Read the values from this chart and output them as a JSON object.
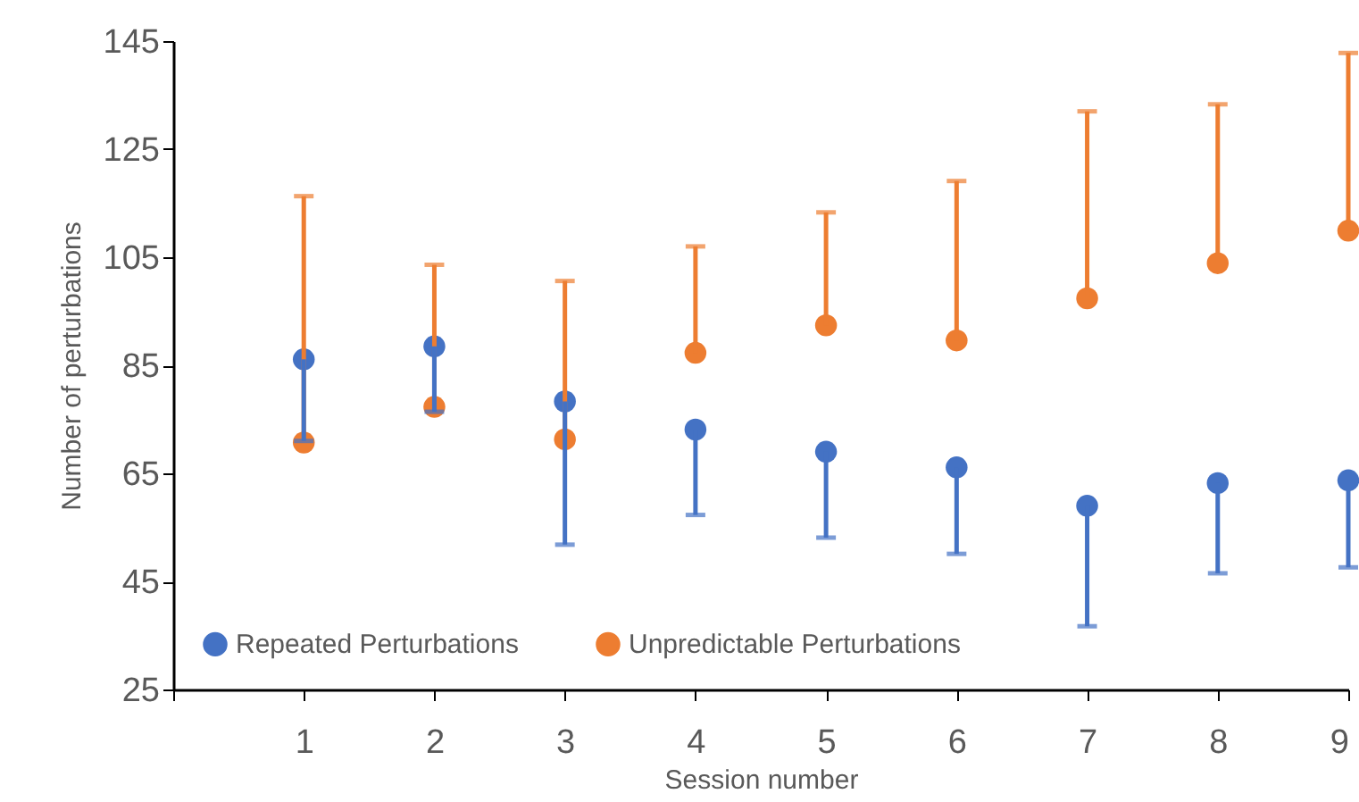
{
  "chart_data": {
    "type": "scatter",
    "xlabel": "Session number",
    "ylabel": "Number of perturbations",
    "x": [
      1,
      2,
      3,
      4,
      5,
      6,
      7,
      8,
      9
    ],
    "series": [
      {
        "name": "Repeated Perturbations",
        "color": "#4472c4",
        "values": [
          86.1,
          88.5,
          78.3,
          73.1,
          69.0,
          66.1,
          59.0,
          63.2,
          63.7
        ],
        "errors": [
          [
            71,
            86.1
          ],
          [
            76.4,
            88.5
          ],
          [
            51.8,
            78.3
          ],
          [
            57.3,
            73.1
          ],
          [
            53.1,
            69.0
          ],
          [
            50.1,
            66.1
          ],
          [
            36.7,
            59.0
          ],
          [
            46.5,
            63.2
          ],
          [
            47.6,
            63.7
          ]
        ]
      },
      {
        "name": "Unpredictable Perturbations",
        "color": "#ed7d31",
        "values": [
          70.7,
          77.3,
          71.3,
          87.3,
          92.4,
          89.6,
          97.4,
          103.9,
          109.9
        ],
        "errors": [
          [
            70.7,
            116.3
          ],
          [
            77.3,
            103.6
          ],
          [
            71.3,
            100.6
          ],
          [
            87.3,
            107
          ],
          [
            92.4,
            113.3
          ],
          [
            89.6,
            119.1
          ],
          [
            97.4,
            132.0
          ],
          [
            103.9,
            133.3
          ],
          [
            109.9,
            142.8
          ]
        ]
      }
    ],
    "xlim": [
      0,
      9
    ],
    "xticks": [
      {
        "value": 0,
        "label": null
      },
      1,
      2,
      3,
      4,
      5,
      6,
      7,
      8,
      9
    ],
    "ylim": [
      25,
      145
    ],
    "yticks": [
      25,
      45,
      65,
      85,
      105,
      125,
      145
    ],
    "grid": false,
    "legend": "bottom",
    "marker": "circle"
  }
}
